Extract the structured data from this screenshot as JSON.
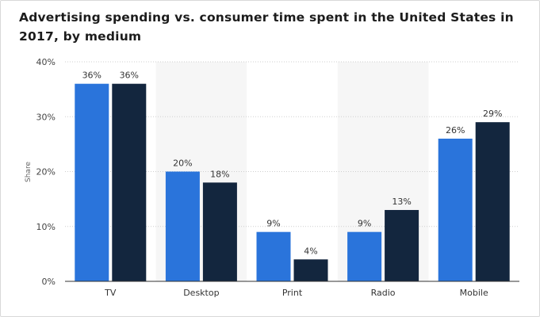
{
  "chart_data": {
    "type": "bar",
    "title": "Advertising spending vs. consumer time spent in the United States in 2017, by medium",
    "xlabel": "",
    "ylabel": "Share",
    "categories": [
      "TV",
      "Desktop",
      "Print",
      "Radio",
      "Mobile"
    ],
    "series": [
      {
        "values": [
          36,
          20,
          9,
          9,
          26
        ],
        "color": "#2a74db"
      },
      {
        "values": [
          36,
          18,
          4,
          13,
          29
        ],
        "color": "#13263e"
      }
    ],
    "value_suffix": "%",
    "ylim": [
      0,
      40
    ],
    "yticks": [
      0,
      10,
      20,
      30,
      40
    ],
    "ytick_labels": [
      "0%",
      "10%",
      "20%",
      "30%",
      "40%"
    ],
    "grid": true,
    "legend": "none"
  }
}
